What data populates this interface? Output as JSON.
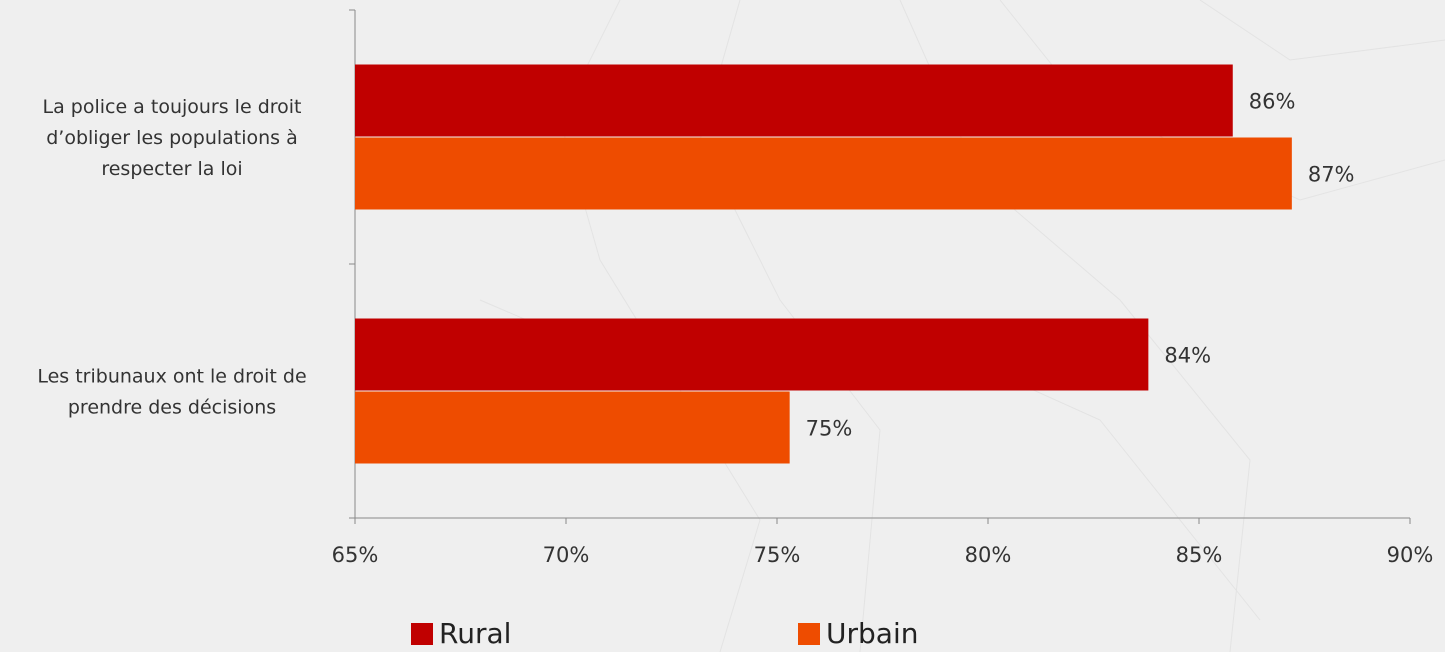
{
  "chart_data": {
    "type": "bar",
    "orientation": "horizontal",
    "categories": [
      "La police a toujours le droit d’obliger les populations à respecter la loi",
      "Les tribunaux ont le droit de prendre des décisions"
    ],
    "category_lines": [
      [
        "La police a toujours le droit",
        "d’obliger les populations à",
        "respecter la loi"
      ],
      [
        "Les tribunaux ont le droit de",
        "prendre des décisions"
      ]
    ],
    "series": [
      {
        "name": "Rural",
        "color": "#c00000",
        "values": [
          85.8,
          83.8
        ],
        "labels": [
          "86%",
          "84%"
        ]
      },
      {
        "name": "Urbain",
        "color": "#ee4c00",
        "values": [
          87.2,
          75.3
        ],
        "labels": [
          "87%",
          "75%"
        ]
      }
    ],
    "xlim": [
      65,
      90
    ],
    "xticks": [
      65,
      70,
      75,
      80,
      85,
      90
    ],
    "xtick_labels": [
      "65%",
      "70%",
      "75%",
      "80%",
      "85%",
      "90%"
    ],
    "grid": false,
    "legend_position": "bottom"
  }
}
